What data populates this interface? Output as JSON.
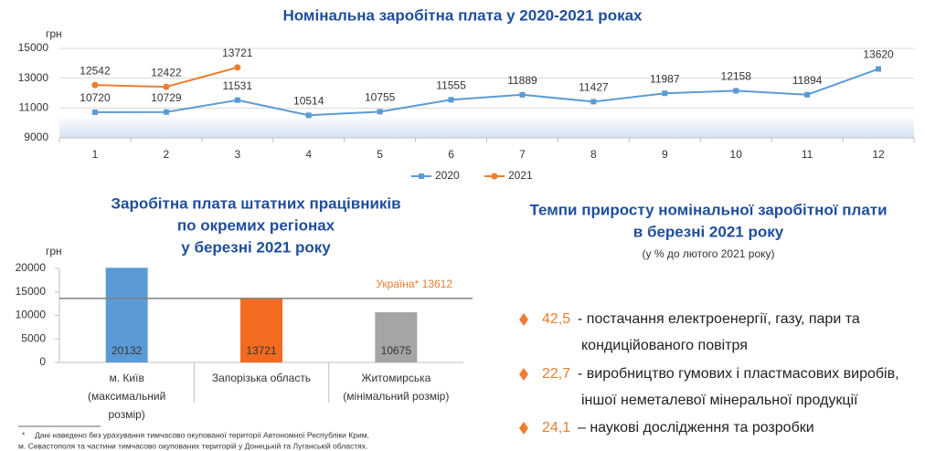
{
  "chart_data": [
    {
      "type": "line",
      "title": "Номінальна заробітна плата у 2020-2021 роках",
      "y_label": "грн",
      "categories": [
        "1",
        "2",
        "3",
        "4",
        "5",
        "6",
        "7",
        "8",
        "9",
        "10",
        "11",
        "12"
      ],
      "series": [
        {
          "name": "2020",
          "color": "#5b9bd5",
          "marker": "square",
          "values": [
            10720,
            10729,
            11531,
            10514,
            10755,
            11555,
            11889,
            11427,
            11987,
            12158,
            11894,
            13620
          ]
        },
        {
          "name": "2021",
          "color": "#ed7d31",
          "marker": "circle",
          "values": [
            12542,
            12422,
            13721,
            null,
            null,
            null,
            null,
            null,
            null,
            null,
            null,
            null
          ]
        }
      ],
      "ylim": [
        9000,
        15000
      ],
      "yticks": [
        9000,
        11000,
        13000,
        15000
      ],
      "grid": true,
      "legend": "bottom"
    },
    {
      "type": "bar",
      "title": [
        "Заробітна плата штатних працівників",
        "по окремих регіонах",
        "у березні 2021 року"
      ],
      "y_label": "грн",
      "categories": [
        [
          "м. Київ",
          "(максимальний",
          "розмір)"
        ],
        [
          "Запорізька область"
        ],
        [
          "Житомирська",
          "(мінімальний розмір)"
        ]
      ],
      "values": [
        20132,
        13721,
        10675
      ],
      "colors": [
        "#5b9bd5",
        "#f26b21",
        "#a5a5a5"
      ],
      "reference": {
        "label": "Україна*",
        "value": 13612
      },
      "ylim": [
        0,
        20000
      ],
      "yticks": [
        0,
        5000,
        10000,
        15000,
        20000
      ],
      "grid": false
    }
  ],
  "growth": {
    "title": [
      "Темпи приросту номінальної заробітної плати",
      "в березні 2021 року"
    ],
    "subtitle": "(у % до лютого 2021 року)",
    "items": [
      {
        "value": "42,5",
        "lines": [
          "- постачання електроенергії, газу, пари та",
          "кондиційованого повітря"
        ]
      },
      {
        "value": "22,7",
        "lines": [
          "- виробництво гумових і пластмасових виробів,",
          "іншої неметалевої мінеральної продукції"
        ]
      },
      {
        "value": "24,1",
        "lines": [
          "– наукові дослідження та розробки"
        ]
      }
    ]
  },
  "footnote": {
    "marker": "*",
    "lines": [
      "Дані наведено без урахування тимчасово окупованої території Автономної Республіки Крим,",
      "м. Севастополя та  частини тимчасово окупованих територій у Донецькій та Луганській областях."
    ]
  }
}
